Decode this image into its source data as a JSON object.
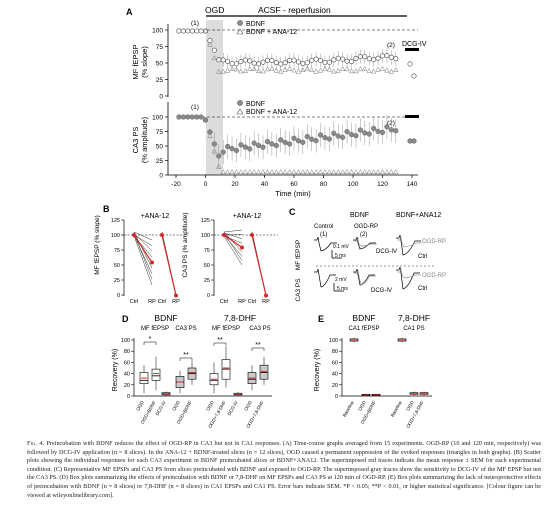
{
  "panel_letters": {
    "a": "A",
    "b": "B",
    "c": "C",
    "d": "D",
    "e": "E"
  },
  "panel_a": {
    "ogd": "OGD",
    "acsf": "ACSF - reperfusion",
    "mf_ylabel_1": "MF fEPSP",
    "mf_ylabel_2": "(% slope)",
    "ca3_ylabel_1": "CA3 PS",
    "ca3_ylabel_2": "(% amplitude)",
    "legend_1": "BDNF",
    "legend_2": "BDNF + ANA-12",
    "dcg_iv": "DCG-IV",
    "marker_1": "(1)",
    "marker_2": "(2)",
    "xlabel": "Time (min)",
    "xticks": [
      "-20",
      "0",
      "20",
      "40",
      "60",
      "80",
      "100",
      "120",
      "140"
    ],
    "yticks_mf": [
      "100",
      "75",
      "50",
      "25",
      "0"
    ],
    "yticks_ca3": [
      "100",
      "75",
      "50",
      "25",
      "0"
    ]
  },
  "panel_b": {
    "mf_ylabel": "MF fEPSP (% slope)",
    "ca3_ylabel": "CA3 PS (% amplitude)",
    "ana_1": "+ANA-12",
    "ana_2": "+ANA-12",
    "yticks": [
      "125",
      "100",
      "75",
      "50",
      "25",
      "0"
    ],
    "xticks": [
      "Ctrl",
      "RP",
      "Ctrl",
      "RP",
      "Ctrl",
      "RP",
      "Ctrl",
      "RP"
    ]
  },
  "panel_c": {
    "bdnf": "BDNF",
    "bdnf_ana": "BDNF+ANA12",
    "mf_label": "MF fEPSP",
    "ca3_label": "CA3 PS",
    "control": "Control",
    "m1": "(1)",
    "ogd_rp": "OGD-RP",
    "m2": "(2)",
    "dcg1": "DCG-IV",
    "dcg2": "DCG-IV",
    "ogdrp_r1": "OGD-RP",
    "ctrl_r1": "Ctrl",
    "ogdrp_r2": "OGD-RP",
    "ctrl_r2": "Ctrl",
    "sb1": "0.1 mV",
    "sb1t": "5 ms",
    "sb2": "2 mV",
    "sb2t": "5 ms"
  },
  "panel_d": {
    "bdnf": "BDNF",
    "dhf": "7,8-DHF",
    "mf": "MF fEPSP",
    "ca3": "CA3 PS",
    "mf2": "MF fEPSP",
    "ca32": "CA3 PS",
    "ylabel": "Recovery (%)",
    "yticks": [
      "100",
      "80",
      "60",
      "40",
      "20",
      "0"
    ],
    "sig": [
      "*",
      "**",
      "**",
      "**"
    ],
    "xt": [
      "OGD",
      "OGD+BDNF",
      "DCG-IV",
      "OGD",
      "OGD+BDNF",
      "OGD",
      "OGD+7,8-DHF",
      "DCG-IV",
      "OGD",
      "OGD+7,8-DHF"
    ]
  },
  "panel_e": {
    "bdnf": "BDNF",
    "dhf": "7,8-DHF",
    "ca1": "CA1 fEPSP",
    "ca1ps": "CA1 PS",
    "ylabel": "Recovery (%)",
    "yticks": [
      "100",
      "80",
      "60",
      "40",
      "20",
      "0"
    ],
    "xt": [
      "Baseline",
      "OGD",
      "OGD+BDNF",
      "Baseline",
      "OGD",
      "OGD+7,8-DHF"
    ]
  },
  "colors": {
    "red": "#d62a2a",
    "gray_box": "#c9c9c9",
    "shade": "#d9d9d9",
    "marker_gray": "#8a8a8a"
  },
  "caption": {
    "label": "Fig. 4.",
    "text": "Preincubation with BDNF reduces the effect of OGD-RP in CA3 but not in CA1 responses. (A) Time-course graphs averaged from 15 experiments. OGD-RP (10 and 120 min, respectively) was followed by DCG-IV application (n = 8 slices). In the ANA-12 + BDNF-treated slices (n = 12 slices), OGD caused a permanent suppression of the evoked responses (triangles in both graphs). (B) Scatter plots showing the individual responses for each CA3 experiment in BDNF preincubated slices or BDNF+ANA12. The superimposed red traces indicate the mean response ± SEM for each experimental condition. (C) Representative MF EPSPs and CA3 PS from slices preincubated with BDNF and exposed to OGD-RP. The superimposed gray traces show the sensitivity to DCG-IV of the MF EPSP but not the CA3 PS. (D) Box plots summarizing the effects of preincubation with BDNF or 7,8-DHF on MF EPSPs and CA3 PS at 120 min of OGD-RP. (E) Box plots summarizing the lack of neuroprotective effects of preincubation with BDNF (n = 8 slices) or 7,8-DHF (n = 8 slices) in CA1 EPSPs and CA1 PS. Error bars indicate SEM. *P < 0.05; **P < 0.01, or higher statistical significance. [Colour figure can be viewed at wileyonlinelibrary.com]."
  }
}
